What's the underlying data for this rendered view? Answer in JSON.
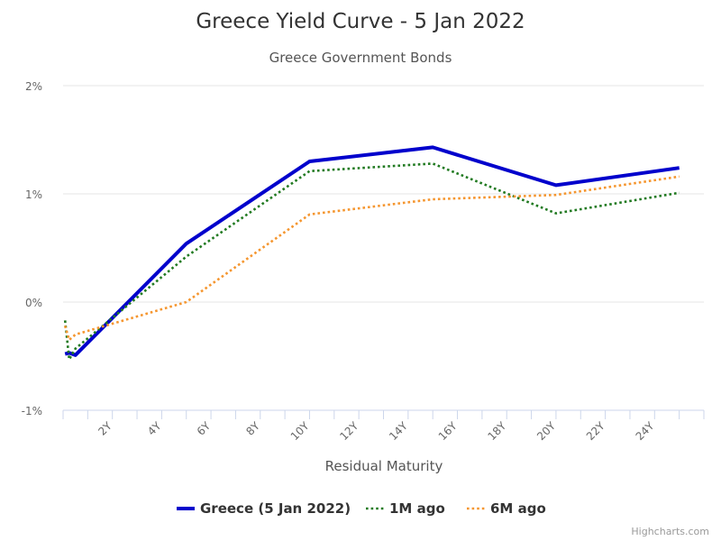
{
  "chart_data": {
    "type": "line",
    "title": "Greece Yield Curve - 5 Jan 2022",
    "subtitle": "Greece Government Bonds",
    "xlabel": "Residual Maturity",
    "ylabel": "",
    "xlim": [
      0,
      26
    ],
    "ylim": [
      -1,
      2
    ],
    "x_ticks": [
      2,
      4,
      6,
      8,
      10,
      12,
      14,
      16,
      18,
      20,
      22,
      24
    ],
    "x_tick_labels": [
      "2Y",
      "4Y",
      "6Y",
      "8Y",
      "10Y",
      "12Y",
      "14Y",
      "16Y",
      "18Y",
      "20Y",
      "22Y",
      "24Y"
    ],
    "y_ticks": [
      -1,
      0,
      1,
      2
    ],
    "y_tick_labels": [
      "-1%",
      "0%",
      "1%",
      "2%"
    ],
    "grid": "horizontal",
    "legend_position": "bottom",
    "credits": "Highcharts.com",
    "series": [
      {
        "name": "Greece (5 Jan 2022)",
        "color": "#0000cc",
        "dash": "solid",
        "points": [
          [
            0.08,
            -0.48
          ],
          [
            0.25,
            -0.47
          ],
          [
            0.5,
            -0.49
          ],
          [
            5,
            0.54
          ],
          [
            10,
            1.3
          ],
          [
            15,
            1.43
          ],
          [
            20,
            1.08
          ],
          [
            25,
            1.24
          ]
        ]
      },
      {
        "name": "1M ago",
        "color": "#217a21",
        "dash": "dotted",
        "points": [
          [
            0.08,
            -0.17
          ],
          [
            0.25,
            -0.53
          ],
          [
            0.5,
            -0.43
          ],
          [
            5,
            0.42
          ],
          [
            10,
            1.21
          ],
          [
            15,
            1.28
          ],
          [
            20,
            0.82
          ],
          [
            25,
            1.01
          ]
        ]
      },
      {
        "name": "6M ago",
        "color": "#f5962f",
        "dash": "dotted",
        "points": [
          [
            0.08,
            -0.22
          ],
          [
            0.25,
            -0.35
          ],
          [
            0.5,
            -0.3
          ],
          [
            5,
            0.0
          ],
          [
            10,
            0.81
          ],
          [
            15,
            0.95
          ],
          [
            20,
            0.99
          ],
          [
            25,
            1.16
          ]
        ]
      }
    ]
  }
}
